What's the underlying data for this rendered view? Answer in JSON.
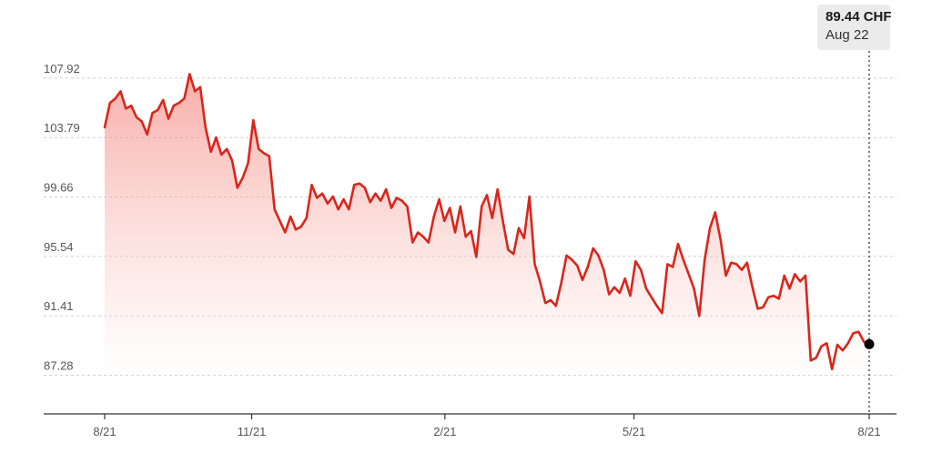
{
  "tooltip": {
    "value": "89.44 CHF",
    "date": "Aug 22"
  },
  "colors": {
    "line": "#d9261c",
    "fill": "#f7b5b0",
    "marker": "#000000"
  },
  "chart_data": {
    "type": "area",
    "x_start": "2021-08-23",
    "x_end": "2022-08-22",
    "xlim": [
      "2021-08-23",
      "2022-08-22"
    ],
    "ylim": [
      84.6,
      110.5
    ],
    "y_ticks": [
      87.28,
      91.41,
      95.54,
      99.66,
      103.79,
      107.92
    ],
    "y_tick_labels": [
      "87.28",
      "91.41",
      "95.54",
      "99.66",
      "103.79",
      "107.92"
    ],
    "x_ticks": [
      {
        "label": "8/21",
        "date": "2021-08-23"
      },
      {
        "label": "11/21",
        "date": "2021-11-01"
      },
      {
        "label": "2/21",
        "date": "2022-02-01"
      },
      {
        "label": "5/21",
        "date": "2022-05-02"
      },
      {
        "label": "8/21",
        "date": "2022-08-22"
      }
    ],
    "grid": true,
    "series": [
      {
        "values": [
          104.5,
          106.2,
          106.5,
          107.0,
          105.8,
          106.0,
          105.2,
          104.9,
          104.0,
          105.5,
          105.7,
          106.4,
          105.1,
          106.0,
          106.2,
          106.5,
          108.2,
          107.0,
          107.3,
          104.5,
          102.8,
          103.8,
          102.6,
          103.0,
          102.2,
          100.3,
          101.0,
          102.0,
          105.0,
          103.0,
          102.7,
          102.5,
          98.8,
          98.0,
          97.2,
          98.3,
          97.4,
          97.6,
          98.2,
          100.5,
          99.6,
          99.9,
          99.2,
          99.7,
          98.8,
          99.5,
          98.8,
          100.5,
          100.6,
          100.3,
          99.3,
          99.9,
          99.4,
          100.2,
          98.9,
          99.6,
          99.4,
          99.0,
          96.5,
          97.2,
          96.9,
          96.5,
          98.3,
          99.5,
          98.0,
          98.9,
          97.2,
          99.0,
          96.9,
          97.3,
          95.5,
          99.0,
          99.8,
          98.2,
          100.2,
          98.0,
          96.0,
          95.7,
          97.5,
          96.8,
          99.7,
          95.0,
          93.8,
          92.3,
          92.5,
          92.1,
          93.7,
          95.6,
          95.3,
          94.9,
          93.9,
          94.8,
          96.1,
          95.6,
          94.6,
          92.9,
          93.4,
          93.0,
          94.0,
          92.8,
          95.2,
          94.6,
          93.3,
          92.7,
          92.1,
          91.6,
          95.0,
          94.8,
          96.4,
          95.3,
          94.3,
          93.3,
          91.4,
          95.3,
          97.5,
          98.6,
          96.7,
          94.2,
          95.1,
          95.0,
          94.6,
          95.1,
          93.4,
          91.9,
          92.0,
          92.7,
          92.8,
          92.6,
          94.2,
          93.3,
          94.3,
          93.8,
          94.2,
          88.3,
          88.5,
          89.3,
          89.5,
          87.7,
          89.4,
          89.0,
          89.5,
          90.2,
          90.3,
          89.6,
          89.44
        ]
      }
    ]
  }
}
